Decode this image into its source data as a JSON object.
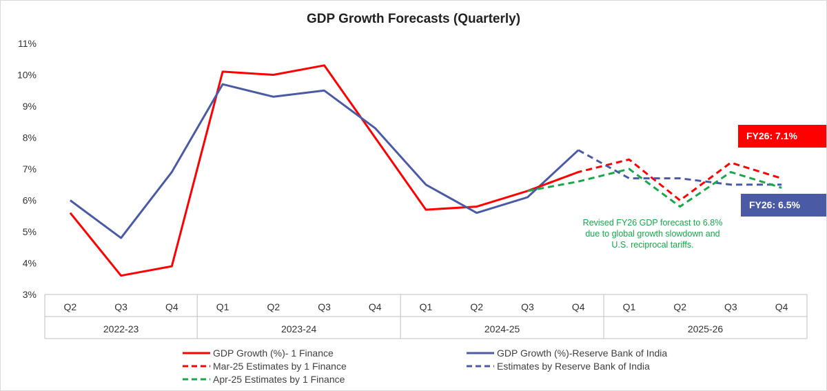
{
  "chart_data": {
    "type": "line",
    "title": "GDP Growth Forecasts (Quarterly)",
    "xlabel": "",
    "ylabel": "",
    "ylim": [
      3,
      11
    ],
    "y_ticks": [
      "3%",
      "4%",
      "5%",
      "6%",
      "7%",
      "8%",
      "9%",
      "10%",
      "11%"
    ],
    "categories": [
      "Q2",
      "Q3",
      "Q4",
      "Q1",
      "Q2",
      "Q3",
      "Q4",
      "Q1",
      "Q2",
      "Q3",
      "Q4",
      "Q1",
      "Q2",
      "Q3",
      "Q4"
    ],
    "groups": [
      {
        "label": "2022-23",
        "count": 3
      },
      {
        "label": "2023-24",
        "count": 4
      },
      {
        "label": "2024-25",
        "count": 4
      },
      {
        "label": "2025-26",
        "count": 4
      }
    ],
    "series": [
      {
        "name": "GDP Growth (%)- 1 Finance",
        "color": "#ff0000",
        "dashed": false,
        "values": [
          5.6,
          3.6,
          3.9,
          10.1,
          10.0,
          10.3,
          8.0,
          5.7,
          5.8,
          6.3,
          6.9,
          null,
          null,
          null,
          null
        ]
      },
      {
        "name": "GDP Growth (%)-Reserve Bank of India",
        "color": "#4a5aa5",
        "dashed": false,
        "values": [
          6.0,
          4.8,
          6.9,
          9.7,
          9.3,
          9.5,
          8.3,
          6.5,
          5.6,
          6.1,
          7.6,
          null,
          null,
          null,
          null
        ]
      },
      {
        "name": "Mar-25 Estimates by 1 Finance",
        "color": "#ff0000",
        "dashed": true,
        "values": [
          null,
          null,
          null,
          null,
          null,
          null,
          null,
          null,
          null,
          6.3,
          6.9,
          7.3,
          6.0,
          7.2,
          6.7
        ]
      },
      {
        "name": "Estimates by Reserve Bank of India",
        "color": "#4a5aa5",
        "dashed": true,
        "values": [
          null,
          null,
          null,
          null,
          null,
          null,
          null,
          null,
          null,
          null,
          7.6,
          6.7,
          6.7,
          6.5,
          6.5
        ]
      },
      {
        "name": "Apr-25 Estimates by 1 Finance",
        "color": "#1aa64a",
        "dashed": true,
        "values": [
          null,
          null,
          null,
          null,
          null,
          null,
          null,
          null,
          null,
          6.3,
          6.6,
          7.0,
          5.8,
          6.9,
          6.4
        ]
      }
    ],
    "legend_order": [
      0,
      1,
      2,
      3,
      4
    ],
    "annotations": [
      {
        "text_lines": [
          "Revised FY26 GDP forecast to 6.8%",
          "due to global growth slowdown and",
          "U.S. reciprocal tariffs."
        ],
        "color": "#1aa64a"
      }
    ],
    "badges": [
      {
        "text": "FY26: 7.1%",
        "color": "#ff0000"
      },
      {
        "text": "FY26: 6.5%",
        "color": "#4a5aa5"
      }
    ],
    "grid": false
  }
}
